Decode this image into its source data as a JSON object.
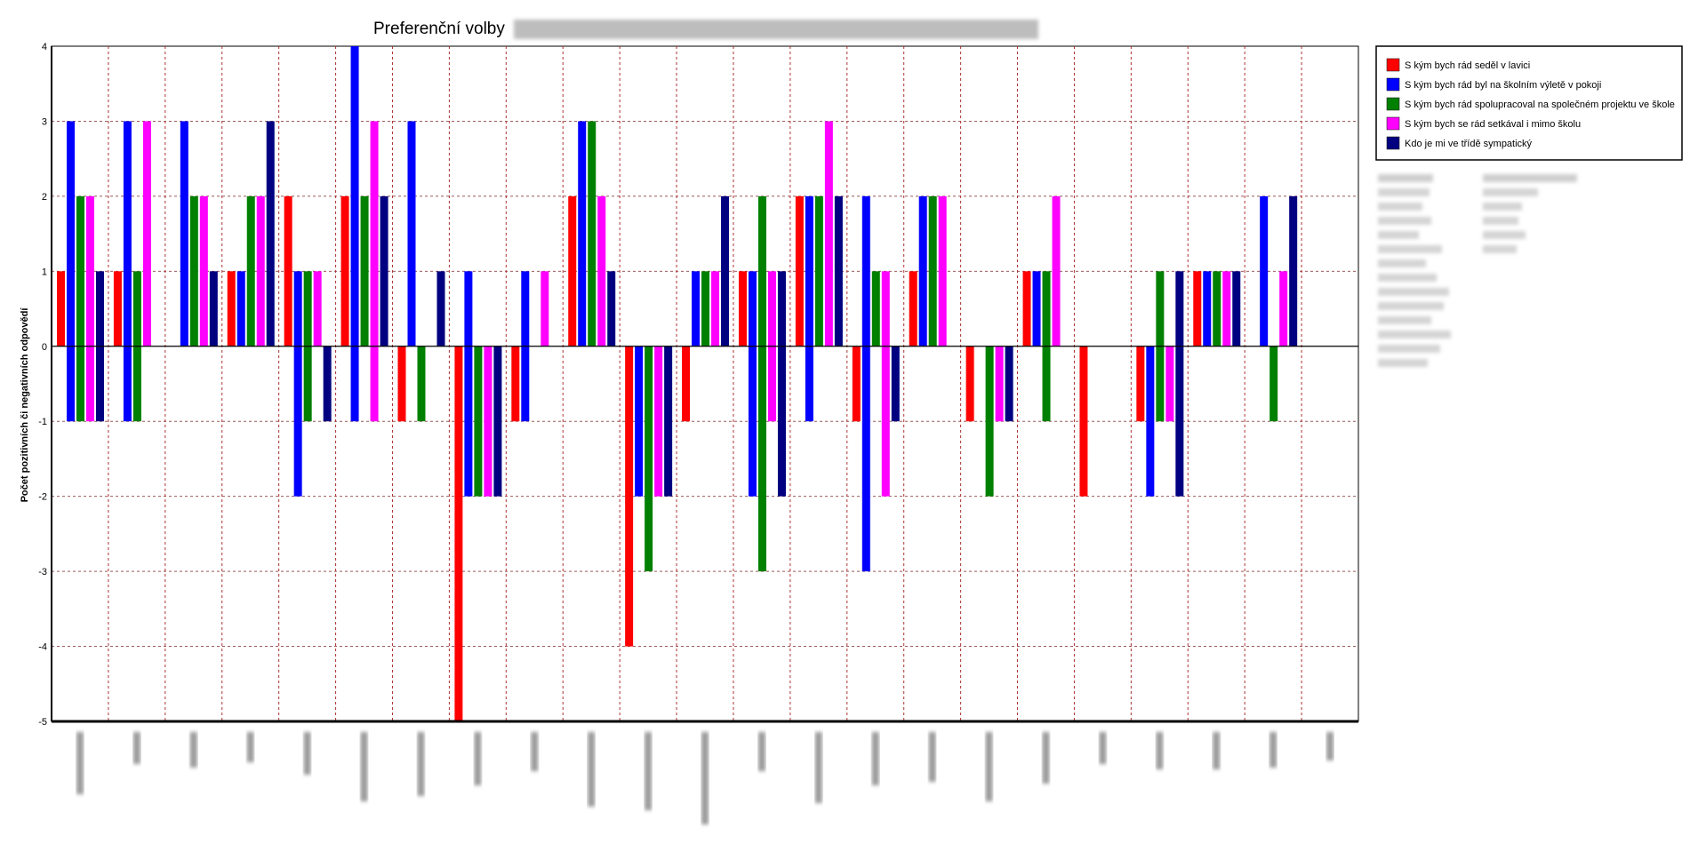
{
  "chart_data": {
    "type": "bar",
    "title": "Preferenční volby",
    "ylabel": "Počet pozitivních či negativních odpovědí",
    "xlabel": "",
    "ylim": [
      -5,
      4
    ],
    "yticks": [
      -5,
      -4,
      -3,
      -2,
      -1,
      0,
      1,
      2,
      3,
      4
    ],
    "grid": true,
    "legend_position": "top-right, outside plot",
    "category_count": 23,
    "series": [
      {
        "name": "S kým bych rád seděl v lavici",
        "color": "#ff0000",
        "values": [
          1,
          1,
          null,
          1,
          2,
          2,
          -1,
          -5,
          -1,
          2,
          -4,
          -1,
          1,
          2,
          -1,
          1,
          -1,
          1,
          -2,
          -1,
          1,
          null,
          null
        ]
      },
      {
        "name": "S kým bych rád byl na školním výletě v pokoji",
        "color": "#0000ff",
        "values": [
          3,
          3,
          3,
          1,
          1,
          4,
          3,
          1,
          1,
          3,
          -2,
          1,
          1,
          2,
          2,
          2,
          null,
          1,
          null,
          -2,
          1,
          2,
          null
        ]
      },
      {
        "name": "S kým bych rád spolupracoval na společném projektu ve škole",
        "color": "#008000",
        "values": [
          2,
          1,
          2,
          2,
          1,
          2,
          -1,
          -2,
          null,
          3,
          -3,
          1,
          2,
          2,
          1,
          2,
          -2,
          1,
          null,
          1,
          1,
          -1,
          null
        ]
      },
      {
        "name": "S kým bych se rád setkával i mimo školu",
        "color": "#ff00ff",
        "values": [
          2,
          3,
          2,
          2,
          1,
          3,
          null,
          -2,
          1,
          2,
          -2,
          1,
          1,
          3,
          1,
          2,
          -1,
          2,
          null,
          -1,
          1,
          1,
          null
        ]
      },
      {
        "name": "Kdo je mi ve třídě sympatický",
        "color": "#000080",
        "values": [
          1,
          null,
          1,
          3,
          -1,
          2,
          1,
          -2,
          null,
          1,
          -2,
          2,
          1,
          2,
          -1,
          null,
          -1,
          null,
          null,
          1,
          1,
          2,
          null
        ]
      }
    ],
    "negative_tails": [
      [
        null,
        -1,
        -1,
        -1,
        -1
      ],
      [
        null,
        -1,
        -1,
        null,
        null
      ],
      [
        null,
        null,
        null,
        null,
        null
      ],
      [
        null,
        null,
        null,
        null,
        null
      ],
      [
        null,
        -2,
        -1,
        null,
        null
      ],
      [
        null,
        -1,
        null,
        -1,
        null
      ],
      [
        null,
        null,
        null,
        null,
        null
      ],
      [
        null,
        -2,
        null,
        null,
        null
      ],
      [
        null,
        -1,
        null,
        null,
        null
      ],
      [
        null,
        null,
        null,
        null,
        null
      ],
      [
        null,
        null,
        null,
        null,
        null
      ],
      [
        null,
        null,
        null,
        null,
        null
      ],
      [
        null,
        -2,
        -3,
        -1,
        -2
      ],
      [
        null,
        -1,
        null,
        null,
        null
      ],
      [
        null,
        -3,
        null,
        -2,
        null
      ],
      [
        null,
        null,
        null,
        null,
        null
      ],
      [
        null,
        null,
        null,
        null,
        null
      ],
      [
        null,
        null,
        -1,
        null,
        null
      ],
      [
        null,
        null,
        null,
        null,
        null
      ],
      [
        null,
        null,
        -1,
        null,
        -2
      ],
      [
        null,
        null,
        null,
        null,
        null
      ],
      [
        null,
        null,
        null,
        null,
        null
      ],
      [
        null,
        null,
        null,
        null,
        null
      ]
    ]
  }
}
